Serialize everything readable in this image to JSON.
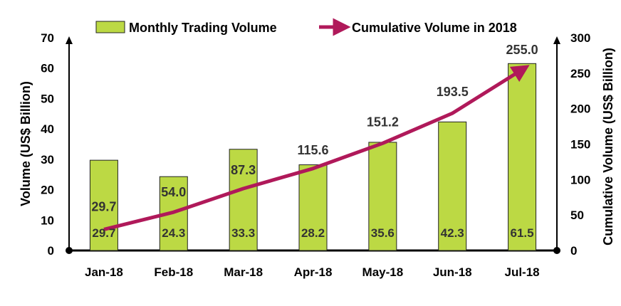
{
  "chart_data": {
    "type": "bar",
    "categories": [
      "Jan-18",
      "Feb-18",
      "Mar-18",
      "Apr-18",
      "May-18",
      "Jun-18",
      "Jul-18"
    ],
    "series": [
      {
        "name": "Monthly Trading Volume",
        "type": "bar",
        "axis": "left",
        "color": "#bcd944",
        "values": [
          29.7,
          24.3,
          33.3,
          28.2,
          35.6,
          42.3,
          61.5
        ],
        "labels": [
          "29.7",
          "24.3",
          "33.3",
          "28.2",
          "35.6",
          "42.3",
          "61.5"
        ]
      },
      {
        "name": "Cumulative Volume in 2018",
        "type": "line",
        "axis": "right",
        "color": "#b0195a",
        "values": [
          29.7,
          54.0,
          87.3,
          115.6,
          151.2,
          193.5,
          255.0
        ],
        "labels": [
          "29.7",
          "54.0",
          "87.3",
          "115.6",
          "151.2",
          "193.5",
          "255.0"
        ]
      }
    ],
    "ylabel": "Volume (US$ Billion)",
    "y2label": "Cumulative Volume (US$ Billion)",
    "ylim": [
      0,
      70
    ],
    "y2lim": [
      0,
      300
    ],
    "yticks": [
      "0",
      "10",
      "20",
      "30",
      "40",
      "50",
      "60",
      "70"
    ],
    "y2ticks": [
      "0",
      "50",
      "100",
      "150",
      "200",
      "250",
      "300"
    ],
    "legend_position": "top",
    "grid": false
  }
}
